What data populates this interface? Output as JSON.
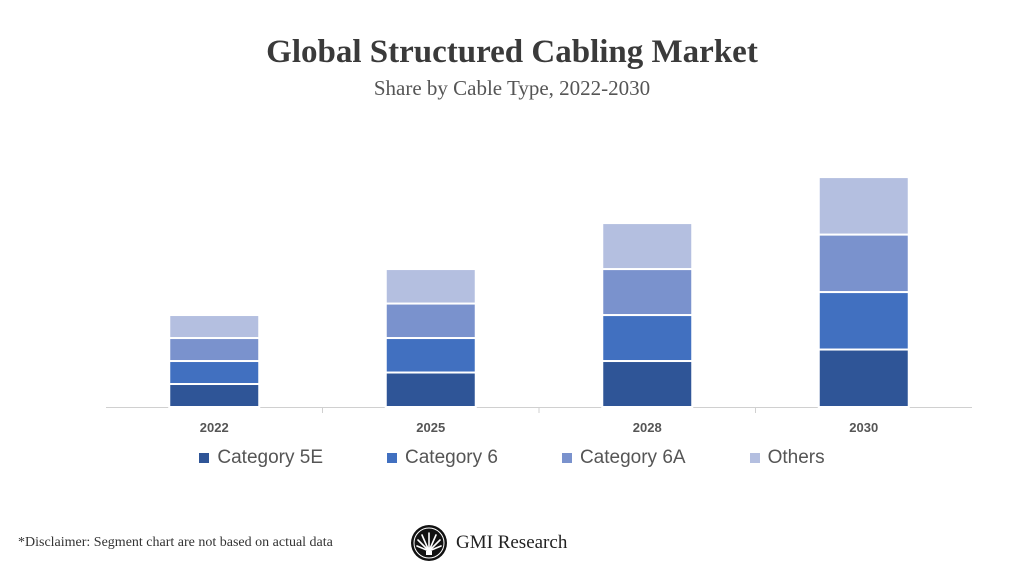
{
  "chart_data": {
    "type": "bar",
    "stacked": true,
    "title": "Global Structured Cabling Market",
    "subtitle": "Share by Cable Type, 2022-2030",
    "categories": [
      "2022",
      "2025",
      "2028",
      "2030"
    ],
    "series": [
      {
        "name": "Category 5E",
        "color": "#2f5597",
        "values": [
          10,
          15,
          20,
          25
        ]
      },
      {
        "name": "Category 6",
        "color": "#4170c0",
        "values": [
          10,
          15,
          20,
          25
        ]
      },
      {
        "name": "Category 6A",
        "color": "#7a92cd",
        "values": [
          10,
          15,
          20,
          25
        ]
      },
      {
        "name": "Others",
        "color": "#b4bfe0",
        "values": [
          10,
          15,
          20,
          25
        ]
      }
    ],
    "ylim": [
      0,
      100
    ],
    "grid": false,
    "legend_position": "bottom"
  },
  "footer": {
    "disclaimer": "*Disclaimer:  Segment chart are not based on actual data",
    "logo_text": "GMI Research"
  }
}
